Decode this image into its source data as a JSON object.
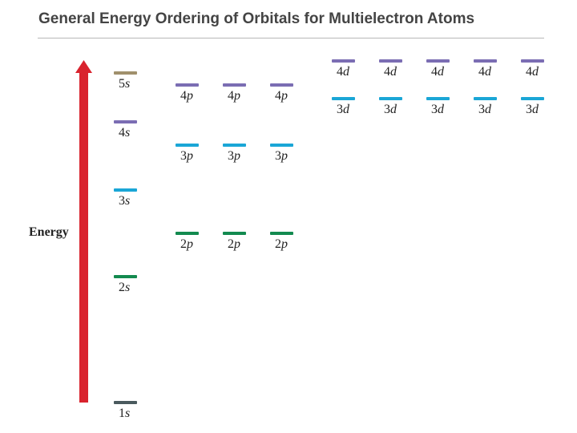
{
  "title": "General Energy Ordering of Orbitals for Multielectron Atoms",
  "axis_label": "Energy",
  "colors": {
    "arrow": "#d9232e",
    "1s": "#4a5a5e",
    "2": "#138a4f",
    "3": "#1aa6d6",
    "4": "#7b6db3",
    "5s": "#a0906c"
  },
  "s_orbitals": [
    {
      "n": "1",
      "l": "s",
      "color_key": "1s"
    },
    {
      "n": "2",
      "l": "s",
      "color_key": "2"
    },
    {
      "n": "3",
      "l": "s",
      "color_key": "3"
    },
    {
      "n": "4",
      "l": "s",
      "color_key": "4"
    },
    {
      "n": "5",
      "l": "s",
      "color_key": "5s"
    }
  ],
  "p_orbitals": [
    {
      "n": "2",
      "l": "p",
      "count": 3,
      "color_key": "2"
    },
    {
      "n": "3",
      "l": "p",
      "count": 3,
      "color_key": "3"
    },
    {
      "n": "4",
      "l": "p",
      "count": 3,
      "color_key": "4"
    }
  ],
  "d_orbitals": [
    {
      "n": "3",
      "l": "d",
      "count": 5,
      "color_key": "3"
    },
    {
      "n": "4",
      "l": "d",
      "count": 5,
      "color_key": "4"
    }
  ]
}
